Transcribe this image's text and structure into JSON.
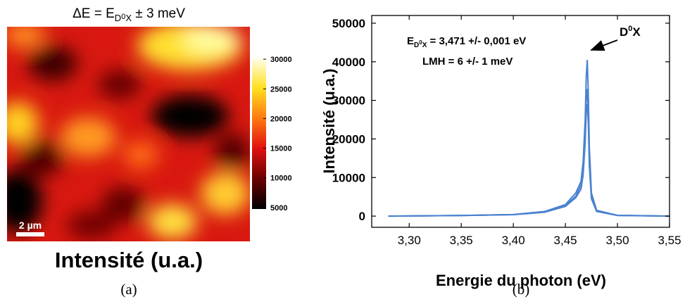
{
  "chart_data": [
    {
      "type": "heatmap",
      "title": [
        "ΔE = E",
        "D",
        "0",
        "X",
        " ± 3 meV"
      ],
      "colorbar_lim": [
        4750,
        30250
      ],
      "colorbar_ticks": [
        5000,
        10000,
        15000,
        20000,
        25000,
        30000
      ],
      "label": "Intensité (u.a.)",
      "scale_bar": "2 µm",
      "caption": "(a)"
    },
    {
      "type": "line",
      "x": [
        3.28,
        3.3,
        3.35,
        3.4,
        3.43,
        3.45,
        3.46,
        3.465,
        3.467,
        3.469,
        3.47,
        3.471,
        3.472,
        3.473,
        3.475,
        3.48,
        3.5,
        3.55
      ],
      "series": [
        {
          "color": "#4a82d0",
          "values": [
            0,
            50,
            150,
            400,
            1200,
            3000,
            6000,
            9000,
            14000,
            25000,
            36000,
            40500,
            32000,
            18000,
            6000,
            1500,
            200,
            0
          ]
        },
        {
          "color": "#4a82d0",
          "values": [
            0,
            50,
            150,
            400,
            1100,
            2700,
            5200,
            8000,
            12000,
            21000,
            30000,
            33000,
            27000,
            15000,
            5000,
            1300,
            200,
            0
          ]
        },
        {
          "color": "#4a82d0",
          "values": [
            0,
            50,
            150,
            350,
            1000,
            2500,
            4800,
            7000,
            10500,
            19000,
            27000,
            29000,
            24000,
            13000,
            4500,
            1200,
            150,
            0
          ]
        }
      ],
      "xlim": [
        3.264,
        3.55
      ],
      "xticks": [
        {
          "value": 3.3,
          "label": "3,30"
        },
        {
          "value": 3.35,
          "label": "3,35"
        },
        {
          "value": 3.4,
          "label": "3,40"
        },
        {
          "value": 3.45,
          "label": "3,45"
        },
        {
          "value": 3.5,
          "label": "3,50"
        },
        {
          "value": 3.55,
          "label": "3,55"
        }
      ],
      "ylim": [
        -2900,
        52000
      ],
      "yticks": [
        0,
        10000,
        20000,
        30000,
        40000,
        50000
      ],
      "xlabel": "Energie du photon (eV)",
      "ylabel": "Intensité (u.a.)",
      "annotations": {
        "energy": [
          "E",
          "D",
          "0",
          "X",
          " = 3,471 +/- 0,001 eV"
        ],
        "width": "LMH = 6 +/- 1 meV",
        "peak": [
          "D",
          "0",
          "X"
        ]
      },
      "caption": "(b)"
    }
  ]
}
